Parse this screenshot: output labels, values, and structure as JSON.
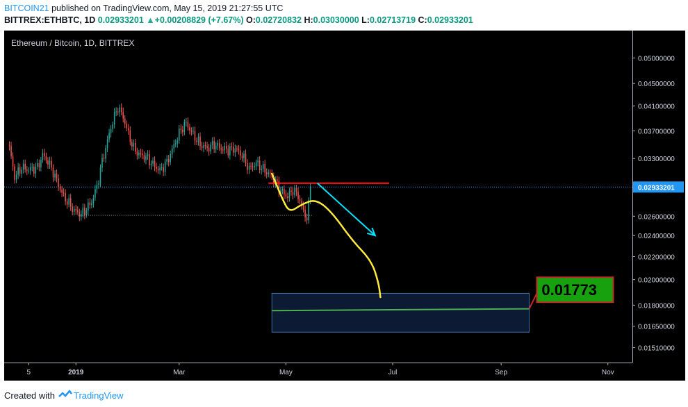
{
  "header": {
    "author": "BITCOIN21",
    "published_text": "published on TradingView.com, May 15, 2019 21:27:55 UTC",
    "symbol": "BITTREX:ETHBTC, 1D",
    "last_price": "0.02933201",
    "change_arrow": "▲",
    "change": "+0.00208829 (+7.67%)",
    "open_label": "O:",
    "open_value": "0.02720832",
    "high_label": "H:",
    "high_value": "0.03030000",
    "low_label": "L:",
    "low_value": "0.02713719",
    "close_label": "C:",
    "close_value": "0.02933201"
  },
  "chart_data": {
    "type": "candlestick",
    "title": "Ethereum / Bitcoin, 1D, BITTREX",
    "x_tick_labels": [
      "5",
      "2019",
      "Mar",
      "May",
      "Jul",
      "Sep",
      "Nov"
    ],
    "y_tick_labels": [
      "0.05000000",
      "0.04500000",
      "0.04100000",
      "0.03700000",
      "0.03300000",
      "0.02600000",
      "0.02400000",
      "0.02200000",
      "0.02000000",
      "0.01800000",
      "0.01650000",
      "0.01510000"
    ],
    "y_scale": "log",
    "ylim": [
      0.0142,
      0.056
    ],
    "last_price": 0.02933201,
    "price_points": [
      [
        "2018-11-24",
        0.0345
      ],
      [
        "2018-11-27",
        0.0306
      ],
      [
        "2018-12-01",
        0.0318
      ],
      [
        "2018-12-05",
        0.0315
      ],
      [
        "2018-12-10",
        0.0318
      ],
      [
        "2018-12-13",
        0.0335
      ],
      [
        "2018-12-16",
        0.0326
      ],
      [
        "2018-12-19",
        0.0312
      ],
      [
        "2018-12-22",
        0.0296
      ],
      [
        "2018-12-25",
        0.0282
      ],
      [
        "2018-12-28",
        0.0274
      ],
      [
        "2018-12-31",
        0.0266
      ],
      [
        "2019-01-04",
        0.0262
      ],
      [
        "2019-01-07",
        0.0268
      ],
      [
        "2019-01-10",
        0.0276
      ],
      [
        "2019-01-13",
        0.0294
      ],
      [
        "2019-01-16",
        0.0326
      ],
      [
        "2019-01-19",
        0.0355
      ],
      [
        "2019-01-22",
        0.0385
      ],
      [
        "2019-01-25",
        0.0408
      ],
      [
        "2019-01-28",
        0.0392
      ],
      [
        "2019-01-31",
        0.0365
      ],
      [
        "2019-02-03",
        0.0344
      ],
      [
        "2019-02-06",
        0.0336
      ],
      [
        "2019-02-10",
        0.0332
      ],
      [
        "2019-02-14",
        0.0322
      ],
      [
        "2019-02-18",
        0.0314
      ],
      [
        "2019-02-22",
        0.0325
      ],
      [
        "2019-02-26",
        0.0348
      ],
      [
        "2019-03-02",
        0.0372
      ],
      [
        "2019-03-05",
        0.0382
      ],
      [
        "2019-03-09",
        0.0364
      ],
      [
        "2019-03-13",
        0.035
      ],
      [
        "2019-03-17",
        0.0344
      ],
      [
        "2019-03-21",
        0.035
      ],
      [
        "2019-03-25",
        0.0344
      ],
      [
        "2019-03-29",
        0.0342
      ],
      [
        "2019-04-02",
        0.0344
      ],
      [
        "2019-04-06",
        0.0334
      ],
      [
        "2019-04-10",
        0.0316
      ],
      [
        "2019-04-14",
        0.0324
      ],
      [
        "2019-04-18",
        0.0316
      ],
      [
        "2019-04-22",
        0.0308
      ],
      [
        "2019-04-25",
        0.03
      ],
      [
        "2019-04-28",
        0.0289
      ],
      [
        "2019-05-02",
        0.0282
      ],
      [
        "2019-05-05",
        0.029
      ],
      [
        "2019-05-08",
        0.0283
      ],
      [
        "2019-05-11",
        0.0265
      ],
      [
        "2019-05-13",
        0.0258
      ],
      [
        "2019-05-14",
        0.0272
      ],
      [
        "2019-05-15",
        0.0293
      ]
    ],
    "support_level": 0.0261,
    "resistance_level": 0.0298,
    "yellow_path": [
      [
        "2019-04-23",
        0.031
      ],
      [
        "2019-04-29",
        0.0279
      ],
      [
        "2019-05-03",
        0.0264
      ],
      [
        "2019-05-10",
        0.0273
      ],
      [
        "2019-05-18",
        0.0279
      ],
      [
        "2019-05-27",
        0.0265
      ],
      [
        "2019-06-08",
        0.0235
      ],
      [
        "2019-06-19",
        0.0216
      ],
      [
        "2019-06-23",
        0.0197
      ],
      [
        "2019-06-24",
        0.0186
      ]
    ],
    "cyan_arrow": [
      [
        "2019-05-19",
        0.0298
      ],
      [
        "2019-06-21",
        0.024
      ]
    ],
    "target_box": {
      "x_start": "2019-04-23",
      "x_end": "2019-09-17",
      "y_top": 0.0189,
      "y_bottom": 0.0161
    },
    "target_line": [
      [
        "2019-04-23",
        0.0176
      ],
      [
        "2019-09-17",
        0.01773
      ]
    ],
    "target_label": "0.01773",
    "colors": {
      "background": "#000000",
      "up": "#26a69a",
      "down": "#ef5350",
      "text": "#ffffff",
      "axis_text": "#d1d4dc",
      "price_line": "#2196f3",
      "support": "#a5a5a5",
      "resistance": "#ff1a1a",
      "path": "#ffeb3b",
      "arrow": "#00e5ff",
      "target_line": "#4caf50",
      "target_box_fill": "#0d1a33",
      "target_box_stroke": "#3a6fa8",
      "target_label_bg": "#17a10e",
      "target_label_border": "#c62828"
    }
  },
  "footer": {
    "created_with": "Created with",
    "brand": "TradingView"
  }
}
